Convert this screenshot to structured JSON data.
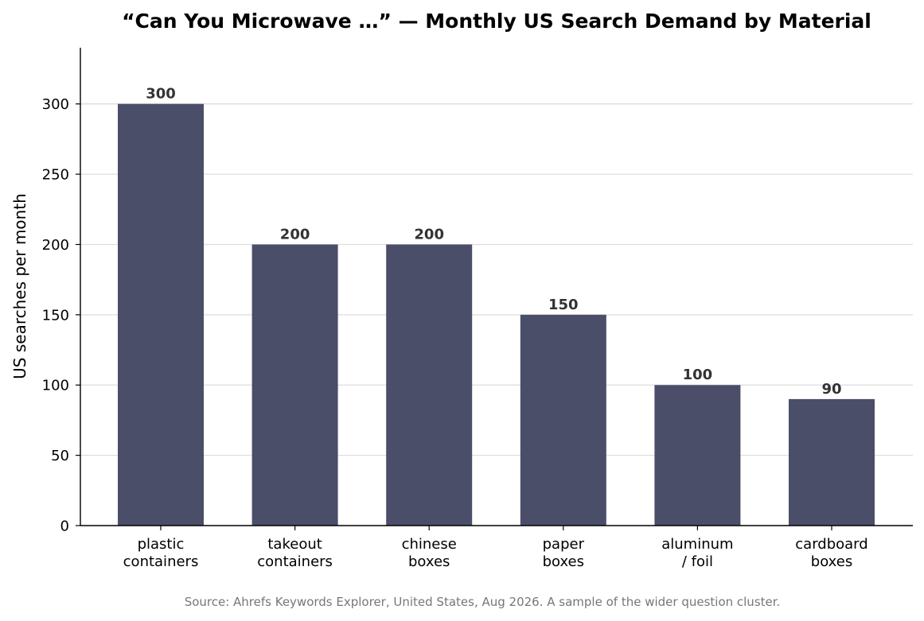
{
  "chart_data": {
    "type": "bar",
    "title": "“Can You Microwave …” — Monthly US Search Demand by Material",
    "xlabel": "",
    "ylabel": "US searches per month",
    "categories": [
      [
        "plastic",
        "containers"
      ],
      [
        "takeout",
        "containers"
      ],
      [
        "chinese",
        "boxes"
      ],
      [
        "paper",
        "boxes"
      ],
      [
        "aluminum",
        "/ foil"
      ],
      [
        "cardboard",
        "boxes"
      ]
    ],
    "values": [
      300,
      200,
      200,
      150,
      100,
      90
    ],
    "value_labels": [
      "300",
      "200",
      "200",
      "150",
      "100",
      "90"
    ],
    "ylim": [
      0,
      340
    ],
    "yticks": [
      0,
      50,
      100,
      150,
      200,
      250,
      300
    ],
    "grid": "horizontal",
    "bar_color": "#4a4e69",
    "source_note": "Source: Ahrefs Keywords Explorer, United States, Aug 2026. A sample of the wider question cluster."
  }
}
